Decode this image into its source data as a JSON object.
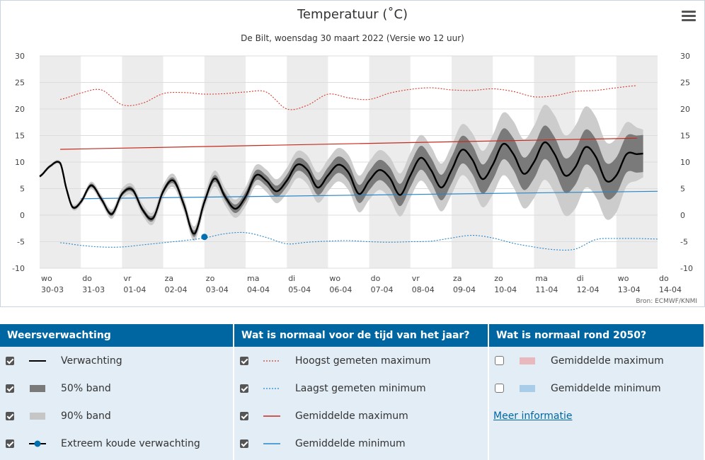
{
  "chart_data": {
    "type": "line",
    "title": "Temperatuur (˚C)",
    "subtitle": "De Bilt, woensdag 30 maart 2022 (Versie wo 12 uur)",
    "ylim": [
      -10,
      30
    ],
    "yticks": [
      30,
      25,
      20,
      15,
      10,
      5,
      0,
      -5,
      -10
    ],
    "xlim": [
      0,
      15
    ],
    "x_days": [
      "wo",
      "do",
      "vr",
      "za",
      "zo",
      "ma",
      "di",
      "wo",
      "do",
      "vr",
      "za",
      "zo",
      "ma",
      "di",
      "wo",
      "do"
    ],
    "x_dates": [
      "30-03",
      "31-03",
      "01-04",
      "02-04",
      "03-04",
      "04-04",
      "05-04",
      "06-04",
      "07-04",
      "08-04",
      "09-04",
      "10-04",
      "11-04",
      "12-04",
      "13-04",
      "14-04"
    ],
    "grid": true,
    "source": "Bron: ECMWF/KNMI",
    "series": [
      {
        "name": "Verwachting",
        "color": "#000000",
        "style": "solid",
        "x": [
          0,
          0.25,
          0.5,
          0.65,
          0.8,
          1.0,
          1.25,
          1.5,
          1.75,
          2.0,
          2.25,
          2.5,
          2.75,
          3.0,
          3.25,
          3.5,
          3.75,
          4.0,
          4.25,
          4.5,
          4.75,
          5.0,
          5.25,
          5.5,
          5.75,
          6.0,
          6.25,
          6.5,
          6.75,
          7.0,
          7.25,
          7.5,
          7.75,
          8.0,
          8.25,
          8.5,
          8.75,
          9.0,
          9.25,
          9.5,
          9.75,
          10.0,
          10.25,
          10.5,
          10.75,
          11.0,
          11.25,
          11.5,
          11.75,
          12.0,
          12.25,
          12.5,
          12.75,
          13.0,
          13.25,
          13.5,
          13.75,
          14.0,
          14.25,
          14.5,
          14.65
        ],
        "y": [
          7.3,
          9.2,
          9.8,
          5.0,
          1.5,
          2.5,
          5.6,
          3.0,
          0.2,
          4.0,
          4.8,
          1.0,
          -0.6,
          4.5,
          6.5,
          2.0,
          -3.5,
          2.5,
          6.9,
          3.5,
          1.2,
          3.5,
          7.5,
          6.5,
          4.5,
          6.5,
          9.5,
          8.5,
          5.2,
          7.5,
          9.5,
          8.0,
          4.0,
          6.5,
          8.5,
          7.0,
          3.8,
          7.5,
          10.8,
          8.5,
          5.2,
          8.5,
          12.3,
          10.5,
          6.8,
          9.5,
          13.4,
          11.5,
          7.8,
          10.0,
          13.7,
          11.5,
          7.5,
          9.0,
          12.8,
          11.0,
          6.5,
          7.5,
          11.5,
          11.5,
          11.6
        ]
      },
      {
        "name": "50% band",
        "color": "#7a7a7a",
        "style": "band",
        "x": [
          0,
          0.5,
          1.0,
          1.5,
          2.0,
          2.5,
          3.0,
          3.5,
          4.0,
          4.5,
          5.0,
          5.5,
          6.0,
          6.5,
          7.0,
          7.5,
          8.0,
          8.5,
          9.0,
          9.5,
          10.0,
          10.5,
          11.0,
          11.5,
          12.0,
          12.5,
          13.0,
          13.5,
          14.0,
          14.5,
          14.65
        ],
        "halfwidth": [
          0.1,
          0.2,
          0.3,
          0.4,
          0.4,
          0.5,
          0.5,
          0.6,
          0.6,
          0.7,
          0.9,
          1.0,
          1.1,
          1.3,
          1.5,
          1.6,
          1.8,
          2.0,
          2.2,
          2.3,
          2.5,
          2.7,
          2.8,
          3.0,
          3.1,
          3.2,
          3.3,
          3.3,
          3.4,
          3.5,
          3.5
        ]
      },
      {
        "name": "90% band",
        "color": "#cccccc",
        "style": "band",
        "x": [
          0,
          0.5,
          1.0,
          1.5,
          2.0,
          2.5,
          3.0,
          3.5,
          4.0,
          4.5,
          5.0,
          5.5,
          6.0,
          6.5,
          7.0,
          7.5,
          8.0,
          8.5,
          9.0,
          9.5,
          10.0,
          10.5,
          11.0,
          11.5,
          12.0,
          12.5,
          13.0,
          13.5,
          14.0,
          14.5,
          14.65
        ],
        "halfwidth": [
          0.3,
          0.4,
          0.6,
          0.8,
          1.0,
          1.1,
          1.2,
          1.3,
          1.4,
          1.6,
          1.8,
          2.1,
          2.4,
          2.7,
          3.0,
          3.3,
          3.6,
          3.9,
          4.2,
          4.4,
          4.6,
          5.0,
          5.6,
          6.2,
          6.8,
          7.3,
          7.8,
          7.5,
          7.0,
          5.0,
          4.5
        ]
      },
      {
        "name": "Extreem koude verwachting",
        "color": "#0070b0",
        "style": "point",
        "x": [
          4.0
        ],
        "y": [
          -4.1
        ]
      },
      {
        "name": "Hoogst gemeten maximum",
        "color": "#d43a2a",
        "style": "dotted",
        "x": [
          0.5,
          1.0,
          1.5,
          2.0,
          2.5,
          3.0,
          3.5,
          4.0,
          4.5,
          5.0,
          5.5,
          6.0,
          6.5,
          7.0,
          7.5,
          8.0,
          8.5,
          9.0,
          9.5,
          10.0,
          10.5,
          11.0,
          11.5,
          12.0,
          12.5,
          13.0,
          13.5,
          14.0,
          14.5
        ],
        "y": [
          21.8,
          23.0,
          23.6,
          20.8,
          21.1,
          22.9,
          23.1,
          22.8,
          22.9,
          23.2,
          23.2,
          20.0,
          20.7,
          22.8,
          22.1,
          21.8,
          23.0,
          23.7,
          24.0,
          23.6,
          23.5,
          23.8,
          23.3,
          22.3,
          22.5,
          23.3,
          23.5,
          24.0,
          24.4
        ]
      },
      {
        "name": "Laagst gemeten minimum",
        "color": "#2a86c8",
        "style": "dotted",
        "x": [
          0.5,
          1.0,
          1.5,
          2.0,
          2.5,
          3.0,
          3.5,
          4.0,
          4.5,
          5.0,
          5.5,
          6.0,
          6.5,
          7.0,
          7.5,
          8.0,
          8.5,
          9.0,
          9.5,
          10.0,
          10.5,
          11.0,
          11.5,
          12.0,
          12.5,
          13.0,
          13.5,
          14.0,
          14.5,
          15.0
        ],
        "y": [
          -5.2,
          -5.7,
          -6.0,
          -6.0,
          -5.6,
          -5.2,
          -4.8,
          -4.3,
          -3.5,
          -3.3,
          -4.2,
          -5.4,
          -5.1,
          -4.9,
          -4.8,
          -5.0,
          -5.1,
          -5.0,
          -4.9,
          -4.3,
          -3.8,
          -4.3,
          -5.3,
          -6.0,
          -6.5,
          -6.4,
          -4.6,
          -4.4,
          -4.4,
          -4.5
        ]
      },
      {
        "name": "Gemiddelde maximum",
        "color": "#c62a1e",
        "style": "solid",
        "x": [
          0.5,
          14.5
        ],
        "y": [
          12.4,
          14.5
        ]
      },
      {
        "name": "Gemiddelde minimum",
        "color": "#2a86c8",
        "style": "solid",
        "x": [
          1.0,
          15.0
        ],
        "y": [
          3.1,
          4.5
        ]
      }
    ]
  },
  "ui": {
    "menu_icon": "hamburger-menu-icon",
    "source": "Bron: ECMWF/KNMI"
  },
  "legend": {
    "col1": {
      "header": "Weersverwachting",
      "items": [
        {
          "label": "Verwachting",
          "checked": true
        },
        {
          "label": "50% band",
          "checked": true
        },
        {
          "label": "90% band",
          "checked": true
        },
        {
          "label": "Extreem koude verwachting",
          "checked": true
        }
      ]
    },
    "col2": {
      "header": "Wat is normaal voor de tijd van het jaar?",
      "items": [
        {
          "label": "Hoogst gemeten maximum",
          "checked": true
        },
        {
          "label": "Laagst gemeten minimum",
          "checked": true
        },
        {
          "label": "Gemiddelde maximum",
          "checked": true
        },
        {
          "label": "Gemiddelde minimum",
          "checked": true
        }
      ]
    },
    "col3": {
      "header": "Wat is normaal rond 2050?",
      "items": [
        {
          "label": "Gemiddelde maximum",
          "checked": false,
          "color": "#e8b8bd"
        },
        {
          "label": "Gemiddelde minimum",
          "checked": false,
          "color": "#a9cde9"
        }
      ],
      "link": "Meer informatie"
    }
  }
}
